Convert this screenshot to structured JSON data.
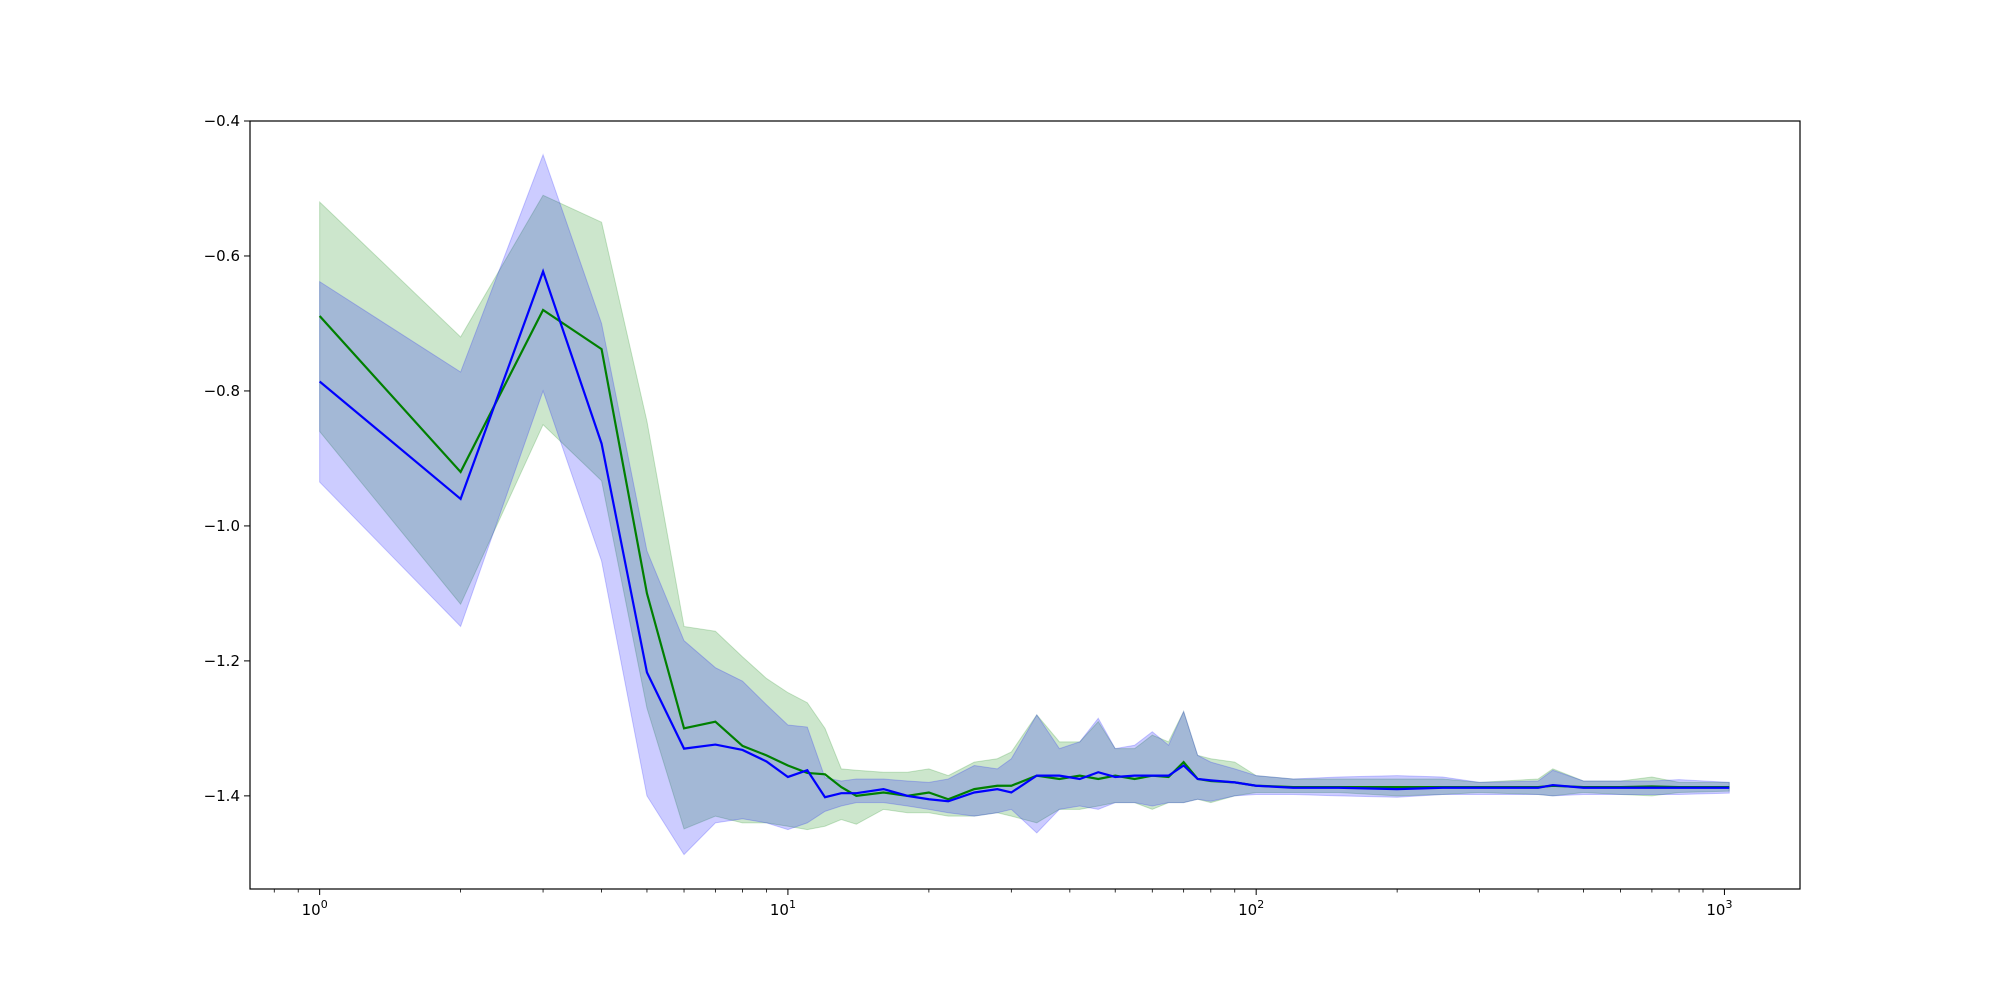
{
  "chart_data": {
    "type": "line",
    "title": "",
    "xlabel": "",
    "ylabel": "",
    "xscale": "log",
    "xlim": [
      0.71,
      1450
    ],
    "ylim": [
      -1.538,
      -0.4
    ],
    "grid": false,
    "legend": "none",
    "xticks": [
      {
        "value": 1,
        "base": "10",
        "exp": "0"
      },
      {
        "value": 10,
        "base": "10",
        "exp": "1"
      },
      {
        "value": 100,
        "base": "10",
        "exp": "2"
      },
      {
        "value": 1000,
        "base": "10",
        "exp": "3"
      }
    ],
    "yticks": [
      {
        "value": -0.4,
        "label": "−0.4"
      },
      {
        "value": -0.6,
        "label": "−0.6"
      },
      {
        "value": -0.8,
        "label": "−0.8"
      },
      {
        "value": -1.0,
        "label": "−1.0"
      },
      {
        "value": -1.2,
        "label": "−1.2"
      },
      {
        "value": -1.4,
        "label": "−1.4"
      }
    ],
    "x": [
      1,
      2,
      3,
      4,
      5,
      6,
      7,
      8,
      9,
      10,
      11,
      12,
      13,
      14,
      16,
      18,
      20,
      22,
      25,
      28,
      30,
      34,
      38,
      42,
      46,
      50,
      55,
      60,
      65,
      70,
      75,
      80,
      90,
      100,
      120,
      150,
      200,
      250,
      300,
      400,
      430,
      500,
      600,
      700,
      800,
      1024
    ],
    "series": [
      {
        "color": "#008000",
        "mean": [
          -0.689,
          -0.92,
          -0.68,
          -0.738,
          -1.1,
          -1.3,
          -1.29,
          -1.326,
          -1.34,
          -1.355,
          -1.366,
          -1.368,
          -1.387,
          -1.4,
          -1.395,
          -1.4,
          -1.395,
          -1.405,
          -1.39,
          -1.385,
          -1.385,
          -1.37,
          -1.375,
          -1.37,
          -1.375,
          -1.37,
          -1.375,
          -1.37,
          -1.372,
          -1.35,
          -1.375,
          -1.378,
          -1.38,
          -1.385,
          -1.387,
          -1.387,
          -1.387,
          -1.387,
          -1.387,
          -1.387,
          -1.385,
          -1.387,
          -1.387,
          -1.386,
          -1.387,
          -1.387
        ],
        "upper": [
          -0.52,
          -0.72,
          -0.51,
          -0.55,
          -0.845,
          -1.149,
          -1.156,
          -1.194,
          -1.226,
          -1.247,
          -1.262,
          -1.3,
          -1.36,
          -1.362,
          -1.365,
          -1.365,
          -1.36,
          -1.37,
          -1.35,
          -1.345,
          -1.335,
          -1.28,
          -1.32,
          -1.32,
          -1.29,
          -1.33,
          -1.33,
          -1.31,
          -1.32,
          -1.275,
          -1.34,
          -1.345,
          -1.35,
          -1.37,
          -1.375,
          -1.375,
          -1.375,
          -1.375,
          -1.38,
          -1.375,
          -1.36,
          -1.378,
          -1.378,
          -1.372,
          -1.38,
          -1.38
        ],
        "lower": [
          -0.86,
          -1.116,
          -0.85,
          -0.933,
          -1.27,
          -1.449,
          -1.43,
          -1.44,
          -1.44,
          -1.445,
          -1.45,
          -1.445,
          -1.435,
          -1.442,
          -1.42,
          -1.425,
          -1.425,
          -1.43,
          -1.43,
          -1.425,
          -1.43,
          -1.44,
          -1.42,
          -1.42,
          -1.415,
          -1.41,
          -1.41,
          -1.42,
          -1.41,
          -1.41,
          -1.405,
          -1.41,
          -1.4,
          -1.395,
          -1.395,
          -1.395,
          -1.4,
          -1.398,
          -1.395,
          -1.398,
          -1.4,
          -1.395,
          -1.398,
          -1.4,
          -1.395,
          -1.393
        ]
      },
      {
        "color": "#0000ff",
        "mean": [
          -0.786,
          -0.96,
          -0.623,
          -0.878,
          -1.217,
          -1.33,
          -1.324,
          -1.332,
          -1.349,
          -1.372,
          -1.362,
          -1.402,
          -1.396,
          -1.396,
          -1.39,
          -1.4,
          -1.405,
          -1.408,
          -1.395,
          -1.39,
          -1.395,
          -1.37,
          -1.37,
          -1.375,
          -1.365,
          -1.372,
          -1.37,
          -1.37,
          -1.37,
          -1.355,
          -1.375,
          -1.377,
          -1.38,
          -1.385,
          -1.388,
          -1.388,
          -1.39,
          -1.388,
          -1.388,
          -1.388,
          -1.384,
          -1.388,
          -1.388,
          -1.388,
          -1.388,
          -1.388
        ],
        "upper": [
          -0.638,
          -0.772,
          -0.45,
          -0.7,
          -1.037,
          -1.17,
          -1.21,
          -1.23,
          -1.265,
          -1.295,
          -1.298,
          -1.373,
          -1.378,
          -1.375,
          -1.375,
          -1.378,
          -1.38,
          -1.375,
          -1.355,
          -1.36,
          -1.345,
          -1.28,
          -1.33,
          -1.32,
          -1.285,
          -1.33,
          -1.325,
          -1.305,
          -1.325,
          -1.275,
          -1.34,
          -1.35,
          -1.36,
          -1.37,
          -1.375,
          -1.372,
          -1.37,
          -1.372,
          -1.38,
          -1.378,
          -1.362,
          -1.378,
          -1.378,
          -1.378,
          -1.376,
          -1.38
        ],
        "lower": [
          -0.935,
          -1.149,
          -0.8,
          -1.052,
          -1.4,
          -1.487,
          -1.44,
          -1.434,
          -1.44,
          -1.45,
          -1.44,
          -1.423,
          -1.415,
          -1.41,
          -1.41,
          -1.415,
          -1.42,
          -1.425,
          -1.43,
          -1.425,
          -1.42,
          -1.455,
          -1.42,
          -1.415,
          -1.42,
          -1.41,
          -1.41,
          -1.415,
          -1.41,
          -1.41,
          -1.405,
          -1.408,
          -1.4,
          -1.398,
          -1.398,
          -1.4,
          -1.402,
          -1.398,
          -1.398,
          -1.398,
          -1.4,
          -1.398,
          -1.398,
          -1.398,
          -1.398,
          -1.396
        ]
      }
    ]
  }
}
